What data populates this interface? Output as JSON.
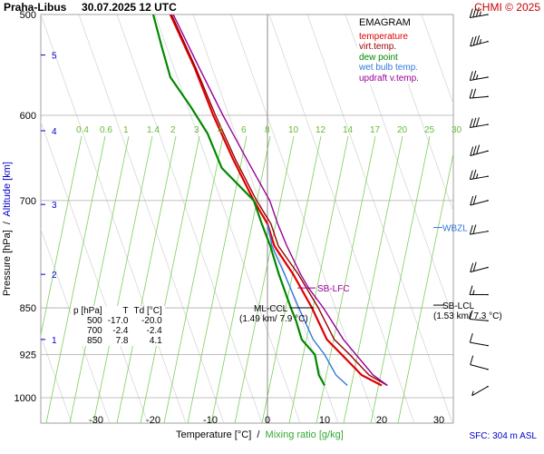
{
  "header": {
    "station_time": "Praha-Libus     30.07.2025 12 UTC",
    "credit": "CHMI © 2025"
  },
  "footer": {
    "sfc": "SFC: 304 m ASL"
  },
  "legend": {
    "title": "EMAGRAM",
    "items": [
      {
        "label": "temperature",
        "color": "#e00000"
      },
      {
        "label": "virt.temp.",
        "color": "#990000"
      },
      {
        "label": "dew point",
        "color": "#008800"
      },
      {
        "label": "wet bulb temp.",
        "color": "#3377dd"
      },
      {
        "label": "updraft v.temp.",
        "color": "#990099"
      }
    ]
  },
  "axes": {
    "xlabel_main": "Temperature [°C]  /  ",
    "xlabel_mixing": "Mixing ratio [g/kg]",
    "ylabel_main": "Pressure [hPa]  /  ",
    "ylabel_alt": "Altitude [km]"
  },
  "table": {
    "headers": [
      "p [hPa]",
      "T",
      "Td [°C]"
    ],
    "rows": [
      [
        "500",
        "-17.0",
        "-20.0"
      ],
      [
        "700",
        "-2.4",
        "-2.4"
      ],
      [
        "850",
        "7.8",
        "4.1"
      ]
    ]
  },
  "chart_data": {
    "type": "line",
    "title": "Praha-Libus 30.07.2025 12 UTC",
    "xlabel": "Temperature [°C] / Mixing ratio [g/kg]",
    "ylabel": "Pressure [hPa] / Altitude [km]",
    "y_scale": "log-pressure",
    "xlim": [
      -40,
      35
    ],
    "ylim": [
      1050,
      500
    ],
    "pressure_ticks": [
      500,
      600,
      700,
      850,
      925,
      1000
    ],
    "temperature_ticks": [
      -30,
      -20,
      -10,
      0,
      10,
      20,
      30
    ],
    "altitude_ticks": [
      {
        "km": 5,
        "p": 538
      },
      {
        "km": 4,
        "p": 617
      },
      {
        "km": 3,
        "p": 705
      },
      {
        "km": 2,
        "p": 800
      },
      {
        "km": 1,
        "p": 900
      }
    ],
    "mixing_ratio_lines": [
      "0.4",
      "0.6",
      "1",
      "1.4",
      "2",
      "3",
      "4",
      "6",
      "8",
      "10",
      "12",
      "14",
      "17",
      "20",
      "25",
      "30"
    ],
    "skew_deg_per_decade": 55,
    "series": [
      {
        "name": "temperature",
        "color": "#e00000",
        "p": [
          978,
          960,
          925,
          900,
          850,
          800,
          760,
          730,
          700,
          650,
          600,
          550,
          500
        ],
        "t": [
          20.0,
          16.5,
          13.0,
          10.4,
          7.8,
          4.5,
          1.2,
          0.0,
          -2.4,
          -6.0,
          -9.5,
          -12.8,
          -17.0
        ]
      },
      {
        "name": "virt.temp.",
        "color": "#990000",
        "p": [
          978,
          960,
          925,
          900,
          850,
          800,
          760,
          730,
          700,
          650,
          600,
          550,
          500
        ],
        "t": [
          21.0,
          17.8,
          14.4,
          11.7,
          8.9,
          5.4,
          1.9,
          0.6,
          -1.9,
          -5.6,
          -9.1,
          -12.6,
          -16.8
        ]
      },
      {
        "name": "dew point",
        "color": "#008800",
        "p": [
          978,
          960,
          925,
          900,
          870,
          850,
          800,
          760,
          730,
          700,
          660,
          620,
          590,
          560,
          530,
          500
        ],
        "t": [
          10.0,
          9.0,
          8.3,
          6.0,
          5.0,
          4.1,
          2.0,
          0.5,
          -1.0,
          -2.4,
          -8.0,
          -10.5,
          -13.5,
          -17.0,
          -18.5,
          -20.0
        ]
      },
      {
        "name": "wet bulb temp.",
        "color": "#3377dd",
        "p": [
          978,
          960,
          925,
          900,
          850,
          800,
          760,
          730
        ],
        "t": [
          14.0,
          12.0,
          10.0,
          8.0,
          5.5,
          3.0,
          0.8,
          0.0
        ]
      },
      {
        "name": "updraft v.temp.",
        "color": "#990099",
        "p": [
          978,
          960,
          925,
          900,
          850,
          820,
          800,
          760,
          730,
          700,
          650,
          600,
          550,
          500
        ],
        "t": [
          21.0,
          18.5,
          15.5,
          13.3,
          9.8,
          7.2,
          5.8,
          3.4,
          1.8,
          0.4,
          -3.6,
          -7.8,
          -12.0,
          -16.5
        ]
      }
    ],
    "annotations": [
      {
        "text": "SB-LFC",
        "p": 820,
        "color": "#990099"
      },
      {
        "text": "ML-CCL",
        "p": 850,
        "color": "#000000"
      },
      {
        "text": "(1.49 km/ 7.9 °C)",
        "color": "#000000"
      },
      {
        "text": "SB-LCL",
        "p": 850,
        "color": "#000000"
      },
      {
        "text": "(1.53 km/ 7.3 °C)",
        "color": "#000000"
      },
      {
        "text": "WBZL",
        "p": 735,
        "color": "#3377dd"
      }
    ],
    "wind_barbs": [
      {
        "p": 500,
        "dir": 260,
        "kt": 35
      },
      {
        "p": 525,
        "dir": 255,
        "kt": 35
      },
      {
        "p": 560,
        "dir": 260,
        "kt": 25
      },
      {
        "p": 580,
        "dir": 265,
        "kt": 20
      },
      {
        "p": 610,
        "dir": 260,
        "kt": 30
      },
      {
        "p": 640,
        "dir": 255,
        "kt": 30
      },
      {
        "p": 670,
        "dir": 260,
        "kt": 25
      },
      {
        "p": 700,
        "dir": 255,
        "kt": 20
      },
      {
        "p": 740,
        "dir": 260,
        "kt": 20
      },
      {
        "p": 790,
        "dir": 255,
        "kt": 20
      },
      {
        "p": 830,
        "dir": 270,
        "kt": 15
      },
      {
        "p": 870,
        "dir": 275,
        "kt": 10
      },
      {
        "p": 910,
        "dir": 280,
        "kt": 10
      },
      {
        "p": 950,
        "dir": 285,
        "kt": 10
      },
      {
        "p": 980,
        "dir": 240,
        "kt": 5
      }
    ]
  }
}
